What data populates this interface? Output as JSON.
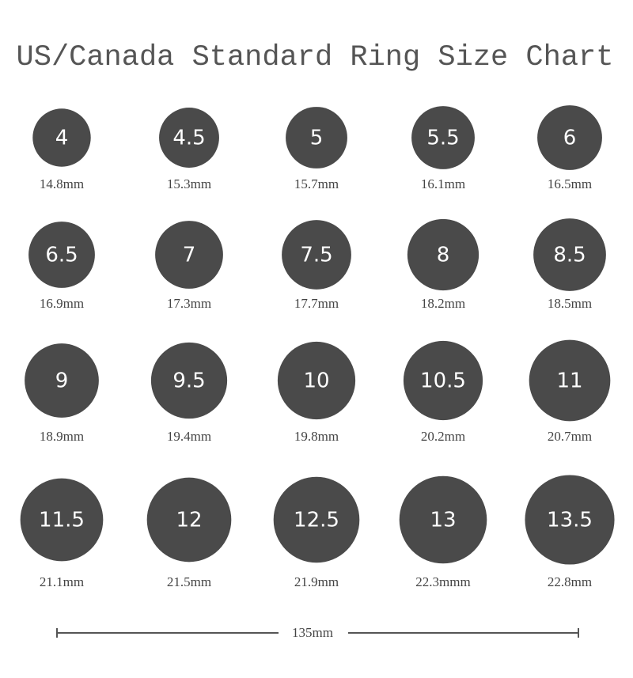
{
  "title": "US/Canada Standard Ring Size Chart",
  "rings": [
    {
      "size": "4",
      "diameter": "14.8mm"
    },
    {
      "size": "4.5",
      "diameter": "15.3mm"
    },
    {
      "size": "5",
      "diameter": "15.7mm"
    },
    {
      "size": "5.5",
      "diameter": "16.1mm"
    },
    {
      "size": "6",
      "diameter": "16.5mm"
    },
    {
      "size": "6.5",
      "diameter": "16.9mm"
    },
    {
      "size": "7",
      "diameter": "17.3mm"
    },
    {
      "size": "7.5",
      "diameter": "17.7mm"
    },
    {
      "size": "8",
      "diameter": "18.2mm"
    },
    {
      "size": "8.5",
      "diameter": "18.5mm"
    },
    {
      "size": "9",
      "diameter": "18.9mm"
    },
    {
      "size": "9.5",
      "diameter": "19.4mm"
    },
    {
      "size": "10",
      "diameter": "19.8mm"
    },
    {
      "size": "10.5",
      "diameter": "20.2mm"
    },
    {
      "size": "11",
      "diameter": "20.7mm"
    },
    {
      "size": "11.5",
      "diameter": "21.1mm"
    },
    {
      "size": "12",
      "diameter": "21.5mm"
    },
    {
      "size": "12.5",
      "diameter": "21.9mm"
    },
    {
      "size": "13",
      "diameter": "22.3mmm"
    },
    {
      "size": "13.5",
      "diameter": "22.8mm"
    }
  ],
  "scale_label": "135mm"
}
